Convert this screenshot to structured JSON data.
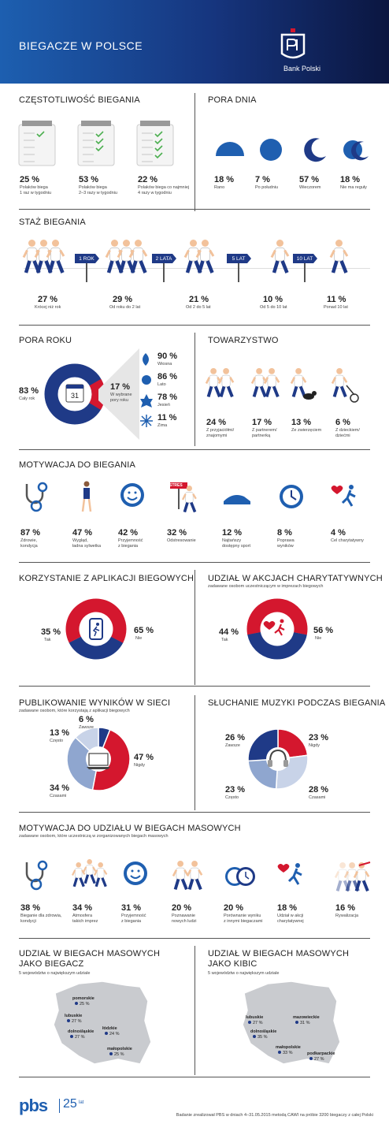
{
  "header": {
    "title": "BIEGACZE W POLSCE",
    "brand": "Bank Polski"
  },
  "freq": {
    "title": "CZĘSTOTLIWOŚĆ BIEGANIA",
    "items": [
      {
        "pct": "25 %",
        "l1": "Polaków biega",
        "l2": "1 raz w tygodniu"
      },
      {
        "pct": "53 %",
        "l1": "Polaków biega",
        "l2": "2–3 razy w tygodniu"
      },
      {
        "pct": "22 %",
        "l1": "Polaków biega co najmniej",
        "l2": "4 razy w tygodniu"
      }
    ]
  },
  "pora": {
    "title": "PORA DNIA",
    "items": [
      {
        "pct": "18 %",
        "l1": "Rano"
      },
      {
        "pct": "7 %",
        "l1": "Po południu"
      },
      {
        "pct": "57 %",
        "l1": "Wieczorem"
      },
      {
        "pct": "18 %",
        "l1": "Nie ma reguły"
      }
    ]
  },
  "staz": {
    "title": "STAŻ BIEGANIA",
    "signs": [
      "1 ROK",
      "2 LATA",
      "5 LAT",
      "10 LAT"
    ],
    "items": [
      {
        "pct": "27 %",
        "l1": "Krócej niż rok"
      },
      {
        "pct": "29 %",
        "l1": "Od roku do 2 lat"
      },
      {
        "pct": "21 %",
        "l1": "Od 2 do 5 lat"
      },
      {
        "pct": "10 %",
        "l1": "Od 5 do 10 lat"
      },
      {
        "pct": "11 %",
        "l1": "Ponad 10 lat"
      }
    ]
  },
  "rok": {
    "title": "PORA ROKU",
    "all_pct": "83 %",
    "all_lbl": "Cały rok",
    "sel_pct": "17 %",
    "sel_l1": "W wybrane",
    "sel_l2": "pory roku",
    "calendar": "31",
    "seasons": [
      {
        "pct": "90 %",
        "l1": "Wiosna"
      },
      {
        "pct": "86 %",
        "l1": "Lato"
      },
      {
        "pct": "78 %",
        "l1": "Jesień"
      },
      {
        "pct": "11 %",
        "l1": "Zima"
      }
    ]
  },
  "tow": {
    "title": "TOWARZYSTWO",
    "items": [
      {
        "pct": "24 %",
        "l1": "Z przyjaciółmi/",
        "l2": "znajomymi"
      },
      {
        "pct": "17 %",
        "l1": "Z partnerem/",
        "l2": "partnerką"
      },
      {
        "pct": "13 %",
        "l1": "Ze zwierzęciem",
        "l2": ""
      },
      {
        "pct": "6 %",
        "l1": "Z dzieckiem/",
        "l2": "dziećmi"
      }
    ]
  },
  "mot": {
    "title": "MOTYWACJA DO BIEGANIA",
    "sign": "STRES",
    "items": [
      {
        "pct": "87 %",
        "l1": "Zdrowie,",
        "l2": "kondycja"
      },
      {
        "pct": "47 %",
        "l1": "Wygląd,",
        "l2": "ładna sylwetka"
      },
      {
        "pct": "42 %",
        "l1": "Przyjemność",
        "l2": "z biegania"
      },
      {
        "pct": "32 %",
        "l1": "Odstresowanie",
        "l2": ""
      },
      {
        "pct": "12 %",
        "l1": "Najtańszy",
        "l2": "dostępny sport"
      },
      {
        "pct": "8 %",
        "l1": "Poprawa",
        "l2": "wyników"
      },
      {
        "pct": "4 %",
        "l1": "Cel charytatywny",
        "l2": ""
      }
    ]
  },
  "apps": {
    "title": "KORZYSTANIE Z APLIKACJI BIEGOWYCH",
    "a_pct": "35 %",
    "a_lbl": "Tak",
    "b_pct": "65 %",
    "b_lbl": "Nie"
  },
  "char": {
    "title": "UDZIAŁ W AKCJACH CHARYTATYWNYCH",
    "sub": "zadawane osobom uczestniczącym w imprezach biegowych",
    "a_pct": "44 %",
    "a_lbl": "Tak",
    "b_pct": "56 %",
    "b_lbl": "Nie"
  },
  "pub": {
    "title": "PUBLIKOWANIE WYNIKÓW W SIECI",
    "sub": "zadawane osobom, które korzystają z aplikacji biegowych",
    "items": [
      {
        "pct": "6 %",
        "l1": "Zawsze"
      },
      {
        "pct": "13 %",
        "l1": "Często"
      },
      {
        "pct": "47 %",
        "l1": "Nigdy"
      },
      {
        "pct": "34 %",
        "l1": "Czasami"
      }
    ]
  },
  "mus": {
    "title": "SŁUCHANIE MUZYKI PODCZAS BIEGANIA",
    "items": [
      {
        "pct": "26 %",
        "l1": "Zawsze"
      },
      {
        "pct": "23 %",
        "l1": "Nigdy"
      },
      {
        "pct": "23 %",
        "l1": "Często"
      },
      {
        "pct": "28 %",
        "l1": "Czasami"
      }
    ]
  },
  "mas": {
    "title": "MOTYWACJA DO UDZIAŁU W BIEGACH MASOWYCH",
    "sub": "zadawane osobom, które uczestniczą w zorganizowanych biegach masowych",
    "items": [
      {
        "pct": "38 %",
        "l1": "Bieganie dla zdrowia,",
        "l2": "kondycji"
      },
      {
        "pct": "34 %",
        "l1": "Atmosfera",
        "l2": "takich imprez"
      },
      {
        "pct": "31 %",
        "l1": "Przyjemność",
        "l2": "z biegania"
      },
      {
        "pct": "20 %",
        "l1": "Poznawanie",
        "l2": "nowych ludzi"
      },
      {
        "pct": "20 %",
        "l1": "Porównanie wyniku",
        "l2": "z innymi biegaczami"
      },
      {
        "pct": "18 %",
        "l1": "Udział w akcji",
        "l2": "charytatywnej"
      },
      {
        "pct": "16 %",
        "l1": "Rywalizacja",
        "l2": ""
      }
    ]
  },
  "mapa1": {
    "title1": "UDZIAŁ W BIEGACH MASOWYCH",
    "title2": "JAKO BIEGACZ",
    "sub": "5 województw o największym udziale",
    "regions": [
      {
        "name": "pomorskie",
        "val": "25 %"
      },
      {
        "name": "lubuskie",
        "val": "27 %"
      },
      {
        "name": "dolnośląskie",
        "val": "27 %"
      },
      {
        "name": "łódzkie",
        "val": "24 %"
      },
      {
        "name": "małopolskie",
        "val": "25 %"
      }
    ]
  },
  "mapa2": {
    "title1": "UDZIAŁ W BIEGACH MASOWYCH",
    "title2": "JAKO KIBIC",
    "sub": "5 województw o największym udziale",
    "regions": [
      {
        "name": "lubuskie",
        "val": "27 %"
      },
      {
        "name": "mazowieckie",
        "val": "31 %"
      },
      {
        "name": "dolnośląskie",
        "val": "35 %"
      },
      {
        "name": "małopolskie",
        "val": "33 %"
      },
      {
        "name": "podkarpackie",
        "val": "27 %"
      }
    ]
  },
  "footer": {
    "logo": "pbs",
    "years": "25",
    "years_unit": "lat",
    "note": "Badanie zrealizował PBS w dniach 4–31.05.2015 metodą CAWI na próbie 3200 biegaczy z całej Polski"
  },
  "chart_data": [
    {
      "type": "bar",
      "title": "CZĘSTOTLIWOŚĆ BIEGANIA",
      "categories": [
        "1 raz w tygodniu",
        "2–3 razy w tygodniu",
        "co najmniej 4 razy w tygodniu"
      ],
      "values": [
        25,
        53,
        22
      ]
    },
    {
      "type": "bar",
      "title": "PORA DNIA",
      "categories": [
        "Rano",
        "Po południu",
        "Wieczorem",
        "Nie ma reguły"
      ],
      "values": [
        18,
        7,
        57,
        18
      ]
    },
    {
      "type": "bar",
      "title": "STAŻ BIEGANIA",
      "categories": [
        "Krócej niż rok",
        "Od roku do 2 lat",
        "Od 2 do 5 lat",
        "Od 5 do 10 lat",
        "Ponad 10 lat"
      ],
      "values": [
        27,
        29,
        21,
        10,
        11
      ]
    },
    {
      "type": "pie",
      "title": "PORA ROKU",
      "categories": [
        "Cały rok",
        "W wybrane pory roku"
      ],
      "values": [
        83,
        17
      ]
    },
    {
      "type": "bar",
      "title": "PORA ROKU",
      "categories": [
        "Wiosna",
        "Lato",
        "Jesień",
        "Zima"
      ],
      "values": [
        90,
        86,
        78,
        11
      ]
    },
    {
      "type": "bar",
      "title": "TOWARZYSTWO",
      "categories": [
        "Z przyjaciółmi/znajomymi",
        "Z partnerem/partnerką",
        "Ze zwierzęciem",
        "Z dzieckiem/dziećmi"
      ],
      "values": [
        24,
        17,
        13,
        6
      ]
    },
    {
      "type": "bar",
      "title": "MOTYWACJA DO BIEGANIA",
      "categories": [
        "Zdrowie, kondycja",
        "Wygląd, ładna sylwetka",
        "Przyjemność z biegania",
        "Odstresowanie",
        "Najtańszy dostępny sport",
        "Poprawa wyników",
        "Cel charytatywny"
      ],
      "values": [
        87,
        47,
        42,
        32,
        12,
        8,
        4
      ]
    },
    {
      "type": "pie",
      "title": "KORZYSTANIE Z APLIKACJI BIEGOWYCH",
      "categories": [
        "Tak",
        "Nie"
      ],
      "values": [
        35,
        65
      ]
    },
    {
      "type": "pie",
      "title": "UDZIAŁ W AKCJACH CHARYTATYWNYCH",
      "categories": [
        "Tak",
        "Nie"
      ],
      "values": [
        44,
        56
      ]
    },
    {
      "type": "pie",
      "title": "PUBLIKOWANIE WYNIKÓW W SIECI",
      "categories": [
        "Zawsze",
        "Często",
        "Czasami",
        "Nigdy"
      ],
      "values": [
        6,
        13,
        34,
        47
      ]
    },
    {
      "type": "pie",
      "title": "SŁUCHANIE MUZYKI PODCZAS BIEGANIA",
      "categories": [
        "Zawsze",
        "Często",
        "Czasami",
        "Nigdy"
      ],
      "values": [
        26,
        23,
        28,
        23
      ]
    },
    {
      "type": "bar",
      "title": "MOTYWACJA DO UDZIAŁU W BIEGACH MASOWYCH",
      "categories": [
        "Bieganie dla zdrowia, kondycji",
        "Atmosfera takich imprez",
        "Przyjemność z biegania",
        "Poznawanie nowych ludzi",
        "Porównanie wyniku z innymi biegaczami",
        "Udział w akcji charytatywnej",
        "Rywalizacja"
      ],
      "values": [
        38,
        34,
        31,
        20,
        20,
        18,
        16
      ]
    }
  ]
}
